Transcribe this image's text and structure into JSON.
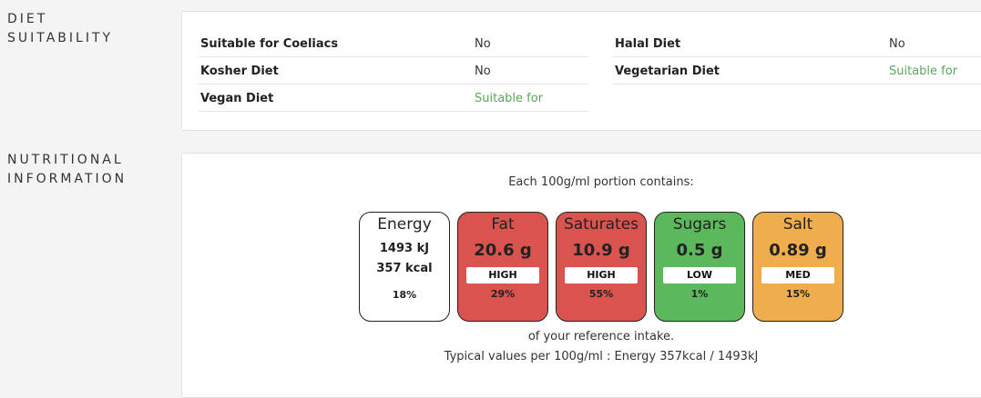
{
  "diet": {
    "heading_line1": "DIET",
    "heading_line2": "SUITABILITY",
    "rows": [
      {
        "name": "Suitable for Coeliacs",
        "value": "No"
      },
      {
        "name": "Halal Diet",
        "value": "No"
      },
      {
        "name": "Kosher Diet",
        "value": "No"
      },
      {
        "name": "Vegetarian Diet",
        "value": "Suitable for"
      },
      {
        "name": "Vegan Diet",
        "value": "Suitable for"
      }
    ]
  },
  "nutrition": {
    "heading_line1": "NUTRITIONAL",
    "heading_line2": "INFORMATION",
    "portion_text": "Each 100g/ml portion contains:",
    "energy": {
      "name": "Energy",
      "kj": "1493 kJ",
      "kcal": "357 kcal",
      "percent": "18%"
    },
    "tiles": [
      {
        "name": "Fat",
        "amount": "20.6 g",
        "level": "HIGH",
        "percent": "29%",
        "color": "#d9534f"
      },
      {
        "name": "Saturates",
        "amount": "10.9 g",
        "level": "HIGH",
        "percent": "55%",
        "color": "#d9534f"
      },
      {
        "name": "Sugars",
        "amount": "0.5 g",
        "level": "LOW",
        "percent": "1%",
        "color": "#5cb85c"
      },
      {
        "name": "Salt",
        "amount": "0.89 g",
        "level": "MED",
        "percent": "15%",
        "color": "#f0ad4e"
      }
    ],
    "reference_text": "of your reference intake.",
    "typical_text": "Typical values per 100g/ml : Energy 357kcal / 1493kJ"
  },
  "colors": {
    "suitable": "#5aa65a",
    "high": "#d9534f",
    "low": "#5cb85c",
    "med": "#f0ad4e"
  }
}
